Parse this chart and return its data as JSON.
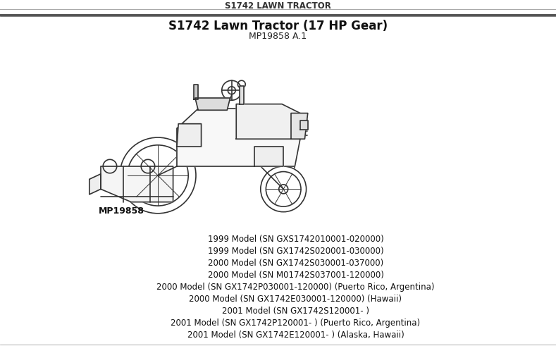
{
  "page_title": "S1742 LAWN TRACTOR",
  "main_title": "S1742 Lawn Tractor (17 HP Gear)",
  "subtitle": "MP19858 A.1",
  "image_label": "MP19858",
  "bg_color": "#ffffff",
  "header_color": "#333333",
  "line_color": "#555555",
  "model_lines": [
    "1999 Model (SN GXS1742010001-020000)",
    "1999 Model (SN GX1742S020001-030000)",
    "2000 Model (SN GX1742S030001-037000)",
    "2000 Model (SN M01742S037001-120000)",
    "2000 Model (SN GX1742P030001-120000) (Puerto Rico, Argentina)",
    "2000 Model (SN GX1742E030001-120000) (Hawaii)",
    "2001 Model (SN GX1742S120001- )",
    "2001 Model (SN GX1742P120001- ) (Puerto Rico, Argentina)",
    "2001 Model (SN GX1742E120001- ) (Alaska, Hawaii)"
  ]
}
